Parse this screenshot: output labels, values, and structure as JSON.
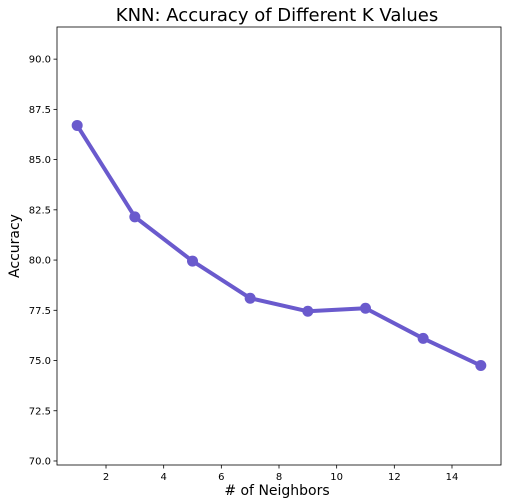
{
  "chart_data": {
    "type": "line",
    "title": "KNN: Accuracy of Different K Values",
    "xlabel": "# of Neighbors",
    "ylabel": "Accuracy",
    "x": [
      1,
      3,
      5,
      7,
      9,
      11,
      13,
      15
    ],
    "series": [
      {
        "values": [
          86.7,
          82.15,
          79.95,
          78.1,
          77.45,
          77.6,
          76.1,
          74.75
        ],
        "color": "#6a5acd"
      }
    ],
    "xlim": [
      0.3,
      15.7
    ],
    "ylim": [
      69.8,
      91.6
    ],
    "xticks": [
      2,
      4,
      6,
      8,
      10,
      12,
      14
    ],
    "xtick_labels": [
      "2",
      "4",
      "6",
      "8",
      "10",
      "12",
      "14"
    ],
    "yticks": [
      70.0,
      72.5,
      75.0,
      77.5,
      80.0,
      82.5,
      85.0,
      87.5,
      90.0
    ],
    "ytick_labels": [
      "70.0",
      "72.5",
      "75.0",
      "77.5",
      "80.0",
      "82.5",
      "85.0",
      "87.5",
      "90.0"
    ],
    "grid": false,
    "markers": true
  }
}
